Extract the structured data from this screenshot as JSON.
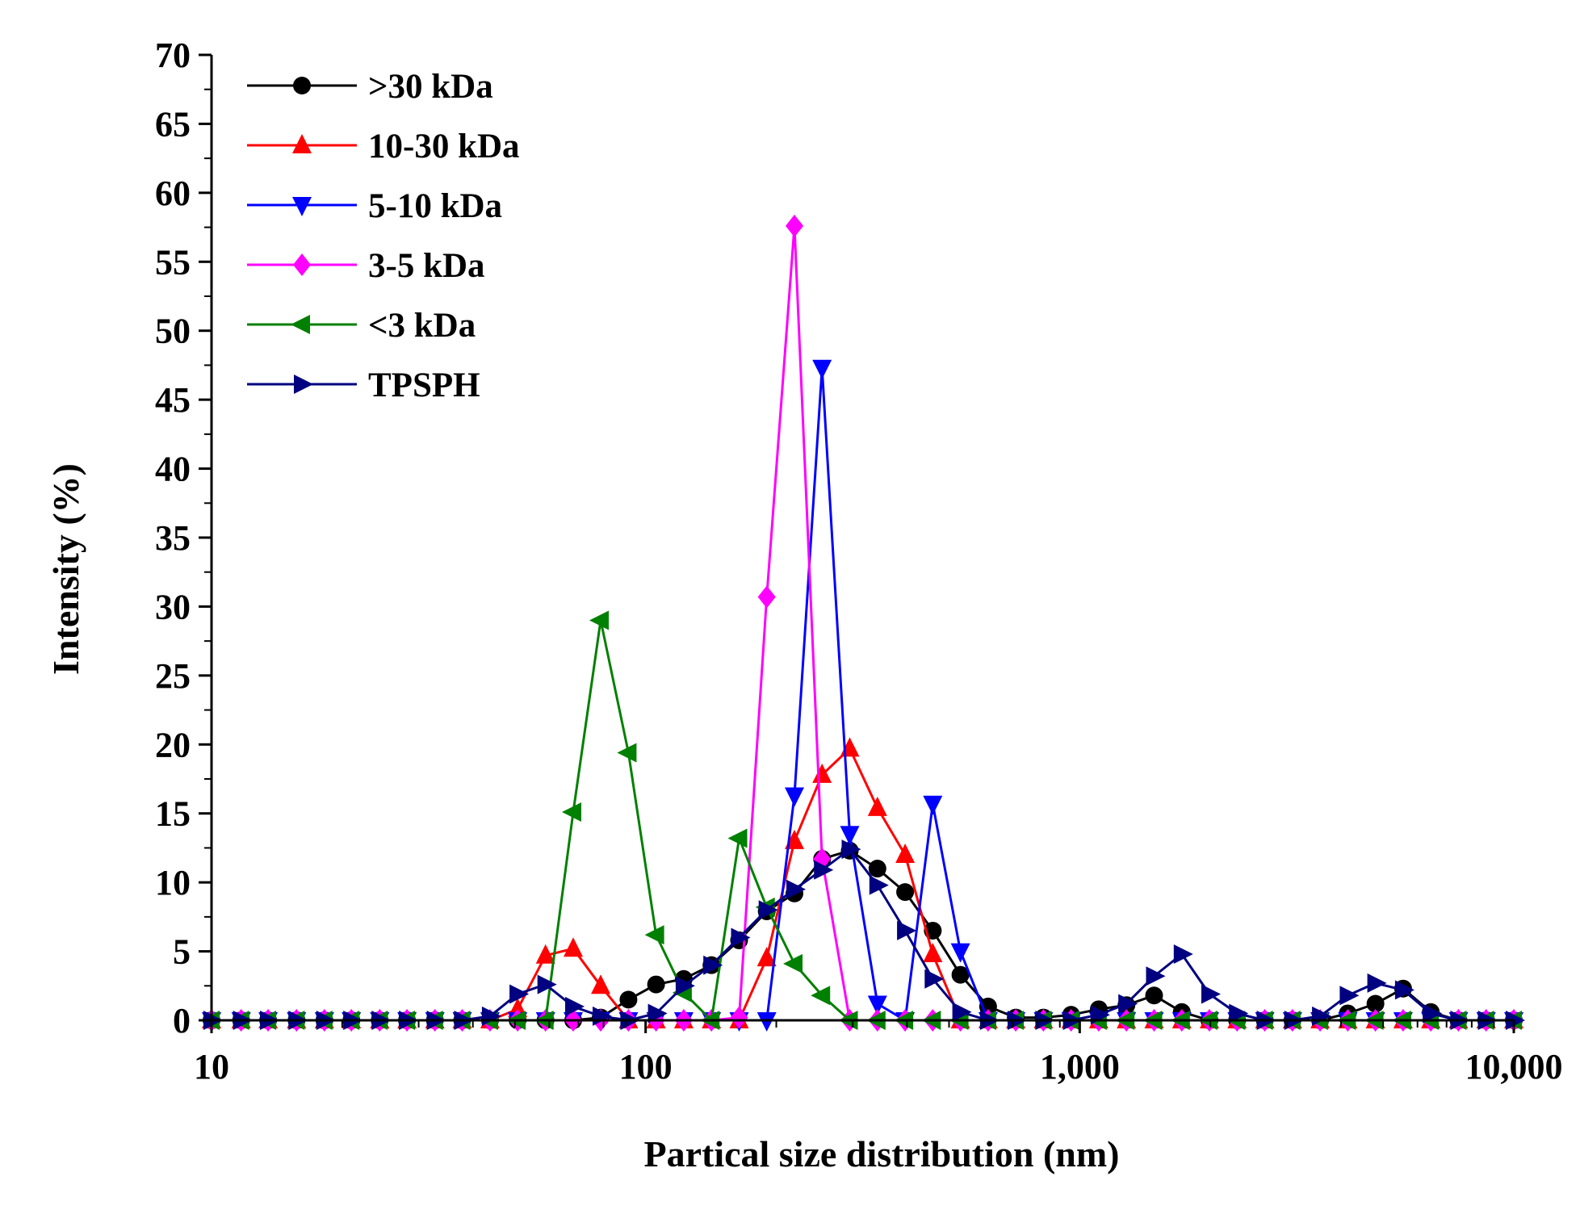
{
  "chart_data": {
    "type": "line",
    "title": "",
    "xlabel": "Partical size distribution (nm)",
    "ylabel": "Intensity (%)",
    "xscale": "log",
    "xlim": [
      10,
      10000
    ],
    "ylim": [
      0,
      70
    ],
    "grid": false,
    "legend_position": "top-left",
    "x_ticks": [
      10,
      100,
      1000,
      10000
    ],
    "x_tick_labels": [
      "10",
      "100",
      "1,000",
      "10,000"
    ],
    "y_ticks": [
      0,
      5,
      10,
      15,
      20,
      25,
      30,
      35,
      40,
      45,
      50,
      55,
      60,
      65,
      70
    ],
    "y_tick_labels": [
      "0",
      "5",
      "10",
      "15",
      "20",
      "25",
      "30",
      "35",
      "40",
      "45",
      "50",
      "55",
      "60",
      "65",
      "70"
    ],
    "x": [
      10.0,
      11.7,
      13.5,
      15.7,
      18.2,
      21.0,
      24.4,
      28.2,
      32.7,
      37.8,
      43.8,
      50.7,
      58.8,
      68.1,
      78.8,
      91.3,
      105.7,
      122.4,
      141.8,
      164.2,
      190.1,
      220.2,
      255.0,
      295.3,
      342.0,
      396.1,
      458.7,
      531.2,
      615.1,
      712.4,
      825.0,
      955.4,
      1106.4,
      1281.3,
      1483.8,
      1718.4,
      1990.0,
      2304.6,
      2668.9,
      3090.8,
      3579.4,
      4145.3,
      4800.6,
      5559.5,
      6438.4,
      7456.3,
      8635.0,
      10000.0
    ],
    "series": [
      {
        "name": ">30 kDa",
        "color": "#000000",
        "marker": "circle",
        "values": [
          0,
          0,
          0,
          0,
          0,
          0,
          0,
          0,
          0,
          0,
          0,
          0,
          0,
          0,
          0.2,
          1.5,
          2.6,
          3.0,
          4.0,
          5.8,
          7.9,
          9.2,
          11.7,
          12.3,
          11.0,
          9.3,
          6.5,
          3.3,
          1.0,
          0.2,
          0.2,
          0.4,
          0.8,
          1.1,
          1.8,
          0.6,
          0,
          0,
          0,
          0,
          0,
          0.5,
          1.2,
          2.3,
          0.6,
          0,
          0,
          0
        ]
      },
      {
        "name": "10-30 kDa",
        "color": "#ff0000",
        "marker": "triangle-up",
        "values": [
          0,
          0,
          0,
          0,
          0,
          0,
          0,
          0,
          0,
          0,
          0,
          0.8,
          4.7,
          5.2,
          2.5,
          0,
          0,
          0,
          0,
          0,
          4.5,
          13.0,
          17.8,
          19.7,
          15.4,
          12.0,
          4.8,
          0,
          0,
          0,
          0,
          0,
          0,
          0,
          0,
          0,
          0,
          0,
          0,
          0,
          0,
          0,
          0,
          0,
          0,
          0,
          0,
          0
        ]
      },
      {
        "name": "5-10 kDa",
        "color": "#0000ff",
        "marker": "triangle-down",
        "values": [
          0,
          0,
          0,
          0,
          0,
          0,
          0,
          0,
          0,
          0,
          0,
          0,
          0,
          0,
          0,
          0,
          0,
          0,
          0,
          0,
          0,
          16.3,
          47.3,
          13.5,
          1.2,
          0,
          15.7,
          5.0,
          0,
          0,
          0,
          0,
          0,
          0,
          0,
          0,
          0,
          0,
          0,
          0,
          0,
          0,
          0,
          0,
          0,
          0,
          0,
          0
        ]
      },
      {
        "name": "3-5 kDa",
        "color": "#ff00ff",
        "marker": "diamond",
        "values": [
          0,
          0,
          0,
          0,
          0,
          0,
          0,
          0,
          0,
          0,
          0,
          0,
          0,
          0,
          0,
          0,
          0,
          0,
          0,
          0.2,
          30.7,
          57.6,
          11.7,
          0,
          0,
          0,
          0,
          0,
          0,
          0,
          0,
          0,
          0,
          0,
          0,
          0,
          0,
          0,
          0,
          0,
          0,
          0,
          0,
          0,
          0,
          0,
          0,
          0
        ]
      },
      {
        "name": "<3 kDa",
        "color": "#008000",
        "marker": "triangle-left",
        "values": [
          0,
          0,
          0,
          0,
          0,
          0,
          0,
          0,
          0,
          0,
          0,
          0,
          0,
          15.1,
          29.0,
          19.4,
          6.2,
          2.0,
          0,
          13.2,
          8.2,
          4.1,
          1.8,
          0,
          0,
          0,
          0,
          0,
          0,
          0,
          0,
          0,
          0,
          0,
          0,
          0,
          0,
          0,
          0,
          0,
          0,
          0,
          0,
          0,
          0,
          0,
          0,
          0
        ]
      },
      {
        "name": "TPSPH",
        "color": "#000080",
        "marker": "triangle-right",
        "values": [
          0,
          0,
          0,
          0,
          0,
          0,
          0,
          0,
          0,
          0,
          0.3,
          1.9,
          2.6,
          1.0,
          0.3,
          0,
          0.5,
          2.5,
          4.0,
          6.0,
          8.0,
          9.5,
          10.9,
          12.4,
          9.8,
          6.5,
          3.0,
          0.6,
          0,
          0,
          0,
          0,
          0.4,
          1.2,
          3.2,
          4.8,
          1.9,
          0.5,
          0,
          0,
          0.3,
          1.8,
          2.7,
          2.2,
          0.5,
          0,
          0,
          0
        ]
      }
    ]
  }
}
